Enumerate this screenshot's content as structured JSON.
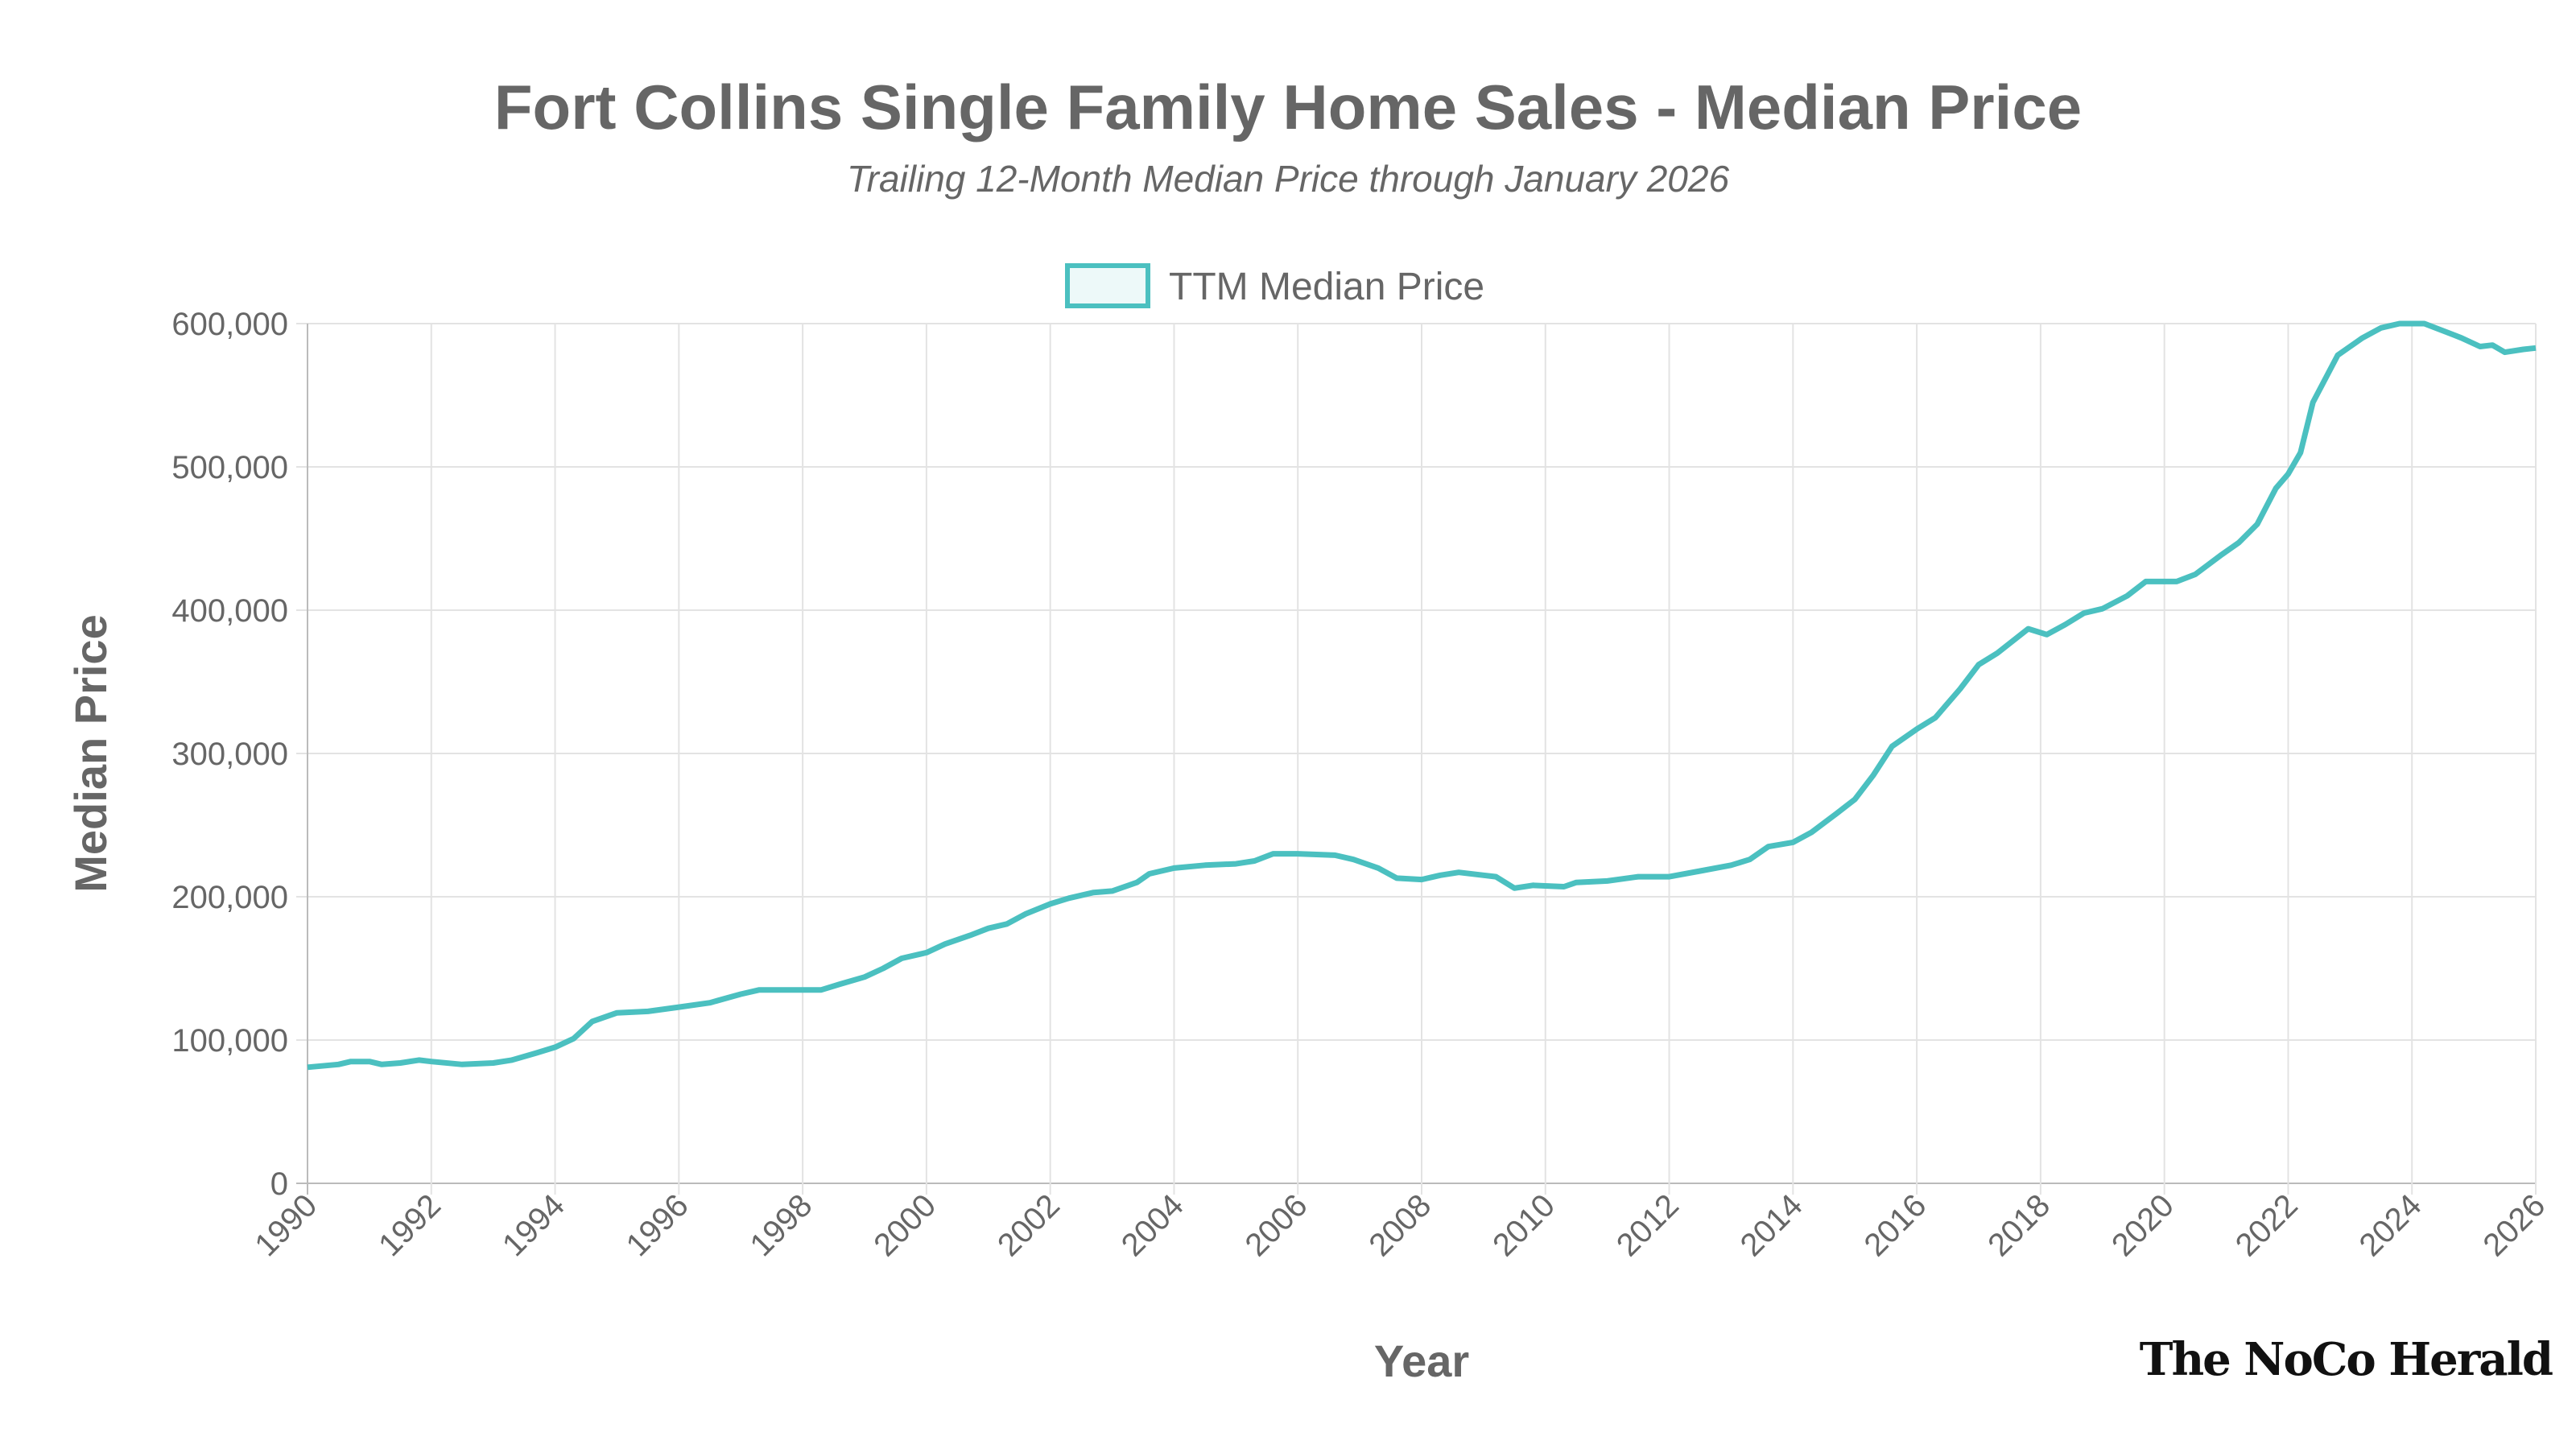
{
  "chart_data": {
    "type": "line",
    "title": "Fort Collins Single Family Home Sales - Median Price",
    "subtitle": "Trailing 12-Month Median Price through January 2026",
    "xlabel": "Year",
    "ylabel": "Median Price",
    "xlim": [
      1990,
      2026
    ],
    "ylim": [
      0,
      600000
    ],
    "x_ticks": [
      "1990",
      "1992",
      "1994",
      "1996",
      "1998",
      "2000",
      "2002",
      "2004",
      "2006",
      "2008",
      "2010",
      "2012",
      "2014",
      "2016",
      "2018",
      "2020",
      "2022",
      "2024",
      "2026"
    ],
    "y_ticks": [
      "0",
      "100,000",
      "200,000",
      "300,000",
      "400,000",
      "500,000",
      "600,000"
    ],
    "grid": true,
    "legend_position": "top-center",
    "series": [
      {
        "name": "TTM Median Price",
        "color": "#4BC0C0",
        "x": [
          1990.0,
          1990.5,
          1990.7,
          1991.0,
          1991.2,
          1991.5,
          1991.8,
          1992.0,
          1992.5,
          1993.0,
          1993.3,
          1993.7,
          1994.0,
          1994.3,
          1994.6,
          1995.0,
          1995.5,
          1996.0,
          1996.5,
          1997.0,
          1997.3,
          1997.7,
          1998.0,
          1998.3,
          1998.6,
          1999.0,
          1999.3,
          1999.6,
          2000.0,
          2000.3,
          2000.7,
          2001.0,
          2001.3,
          2001.6,
          2002.0,
          2002.3,
          2002.7,
          2003.0,
          2003.4,
          2003.6,
          2004.0,
          2004.5,
          2005.0,
          2005.3,
          2005.6,
          2006.0,
          2006.6,
          2006.9,
          2007.3,
          2007.6,
          2008.0,
          2008.3,
          2008.6,
          2009.0,
          2009.2,
          2009.5,
          2009.8,
          2010.3,
          2010.5,
          2011.0,
          2011.5,
          2012.0,
          2012.5,
          2013.0,
          2013.3,
          2013.6,
          2014.0,
          2014.3,
          2014.7,
          2015.0,
          2015.3,
          2015.6,
          2016.0,
          2016.3,
          2016.7,
          2017.0,
          2017.3,
          2017.8,
          2018.1,
          2018.4,
          2018.7,
          2019.0,
          2019.4,
          2019.7,
          2020.2,
          2020.5,
          2020.9,
          2021.2,
          2021.5,
          2021.8,
          2022.0,
          2022.2,
          2022.4,
          2022.8,
          2023.2,
          2023.5,
          2023.8,
          2024.2,
          2024.5,
          2024.8,
          2025.1,
          2025.3,
          2025.5,
          2025.8,
          2026.0
        ],
        "values": [
          81000,
          83000,
          85000,
          85000,
          83000,
          84000,
          86000,
          85000,
          83000,
          84000,
          86000,
          91000,
          95000,
          101000,
          113000,
          119000,
          120000,
          123000,
          126000,
          132000,
          135000,
          135000,
          135000,
          135000,
          139000,
          144000,
          150000,
          157000,
          161000,
          167000,
          173000,
          178000,
          181000,
          188000,
          195000,
          199000,
          203000,
          204000,
          210000,
          216000,
          220000,
          222000,
          223000,
          225000,
          230000,
          230000,
          229000,
          226000,
          220000,
          213000,
          212000,
          215000,
          217000,
          215000,
          214000,
          206000,
          208000,
          207000,
          210000,
          211000,
          214000,
          214000,
          218000,
          222000,
          226000,
          235000,
          238000,
          245000,
          258000,
          268000,
          285000,
          305000,
          317000,
          325000,
          345000,
          362000,
          370000,
          387000,
          383000,
          390000,
          398000,
          401000,
          410000,
          420000,
          420000,
          425000,
          438000,
          447000,
          460000,
          485000,
          495000,
          510000,
          545000,
          578000,
          590000,
          597000,
          600000,
          600000,
          595000,
          590000,
          584000,
          585000,
          580000,
          582000,
          583000
        ]
      }
    ]
  },
  "branding": {
    "logo_text": "The NoCo Herald"
  }
}
